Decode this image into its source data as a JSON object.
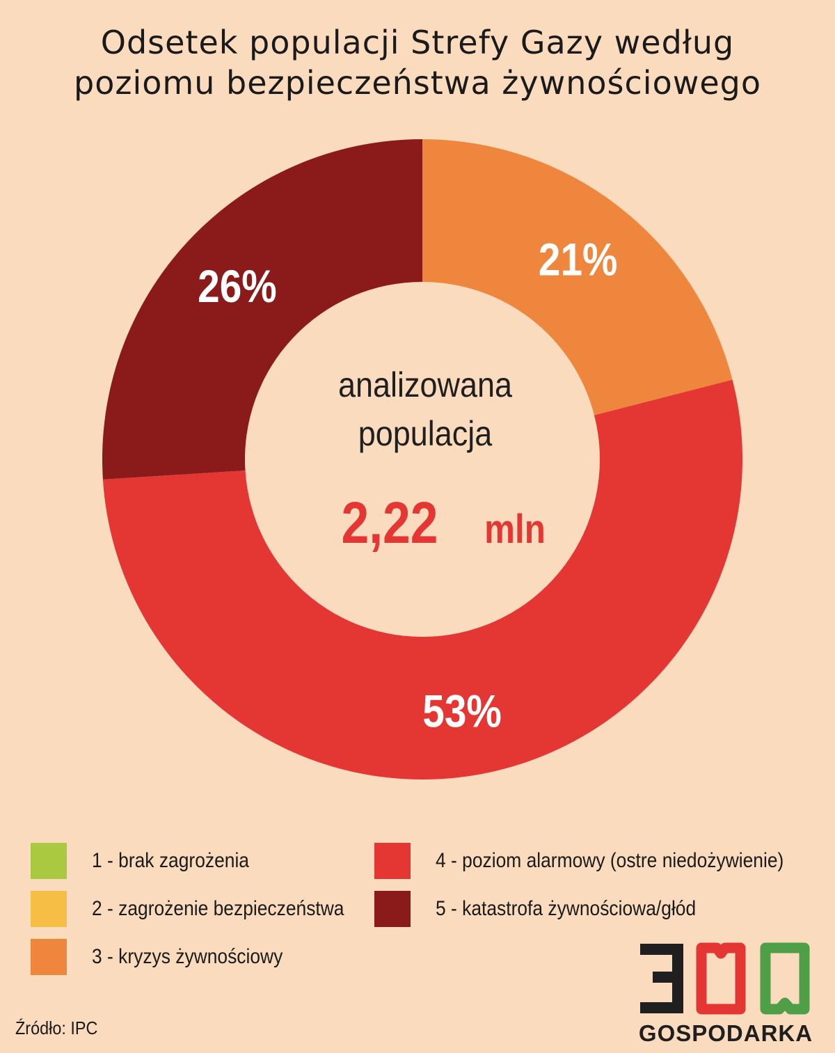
{
  "title": {
    "line1": "Odsetek populacji Strefy Gazy według",
    "line2": "poziomu bezpieczeństwa żywnościowego"
  },
  "center": {
    "line1": "analizowana",
    "line2": "populacja",
    "value": "2,22",
    "unit": "mln"
  },
  "chart_data": {
    "type": "pie",
    "title": "Odsetek populacji Strefy Gazy według poziomu bezpieczeństwa żywnościowego",
    "categories": [
      "1 - brak zagrożenia",
      "2 - zagrożenie bezpieczeństwa",
      "3 - kryzys żywnościowy",
      "4 - poziom alarmowy (ostre niedożywienie)",
      "5 - katastrofa żywnościowa/głód"
    ],
    "values": [
      0,
      0,
      21,
      53,
      26
    ],
    "slices": [
      {
        "label": "3 - kryzys żywnościowy",
        "value": 21,
        "display": "21%",
        "color": "#EF863E"
      },
      {
        "label": "4 - poziom alarmowy (ostre niedożywienie)",
        "value": 53,
        "display": "53%",
        "color": "#E43633"
      },
      {
        "label": "5 - katastrofa żywnościowa/głód",
        "value": 26,
        "display": "26%",
        "color": "#8B1B1A"
      }
    ],
    "donut": true,
    "legend_position": "bottom"
  },
  "legend": [
    {
      "label": "1 - brak zagrożenia",
      "color": "#A9C941"
    },
    {
      "label": "2 - zagrożenie bezpieczeństwa",
      "color": "#F6BE45"
    },
    {
      "label": "3 - kryzys żywnościowy",
      "color": "#EF863E"
    },
    {
      "label": "4 - poziom alarmowy (ostre niedożywienie)",
      "color": "#E43633"
    },
    {
      "label": "5 - katastrofa żywnościowa/głód",
      "color": "#8B1B1A"
    }
  ],
  "source": "Źródło: IPC",
  "logo": {
    "digits": "300",
    "word": "GOSPODARKA",
    "colors": {
      "dark": "#1f1f1f",
      "red": "#E43633",
      "green": "#4E9F47"
    }
  },
  "colors": {
    "background": "#FADBBE",
    "center_value": "#E43633"
  }
}
